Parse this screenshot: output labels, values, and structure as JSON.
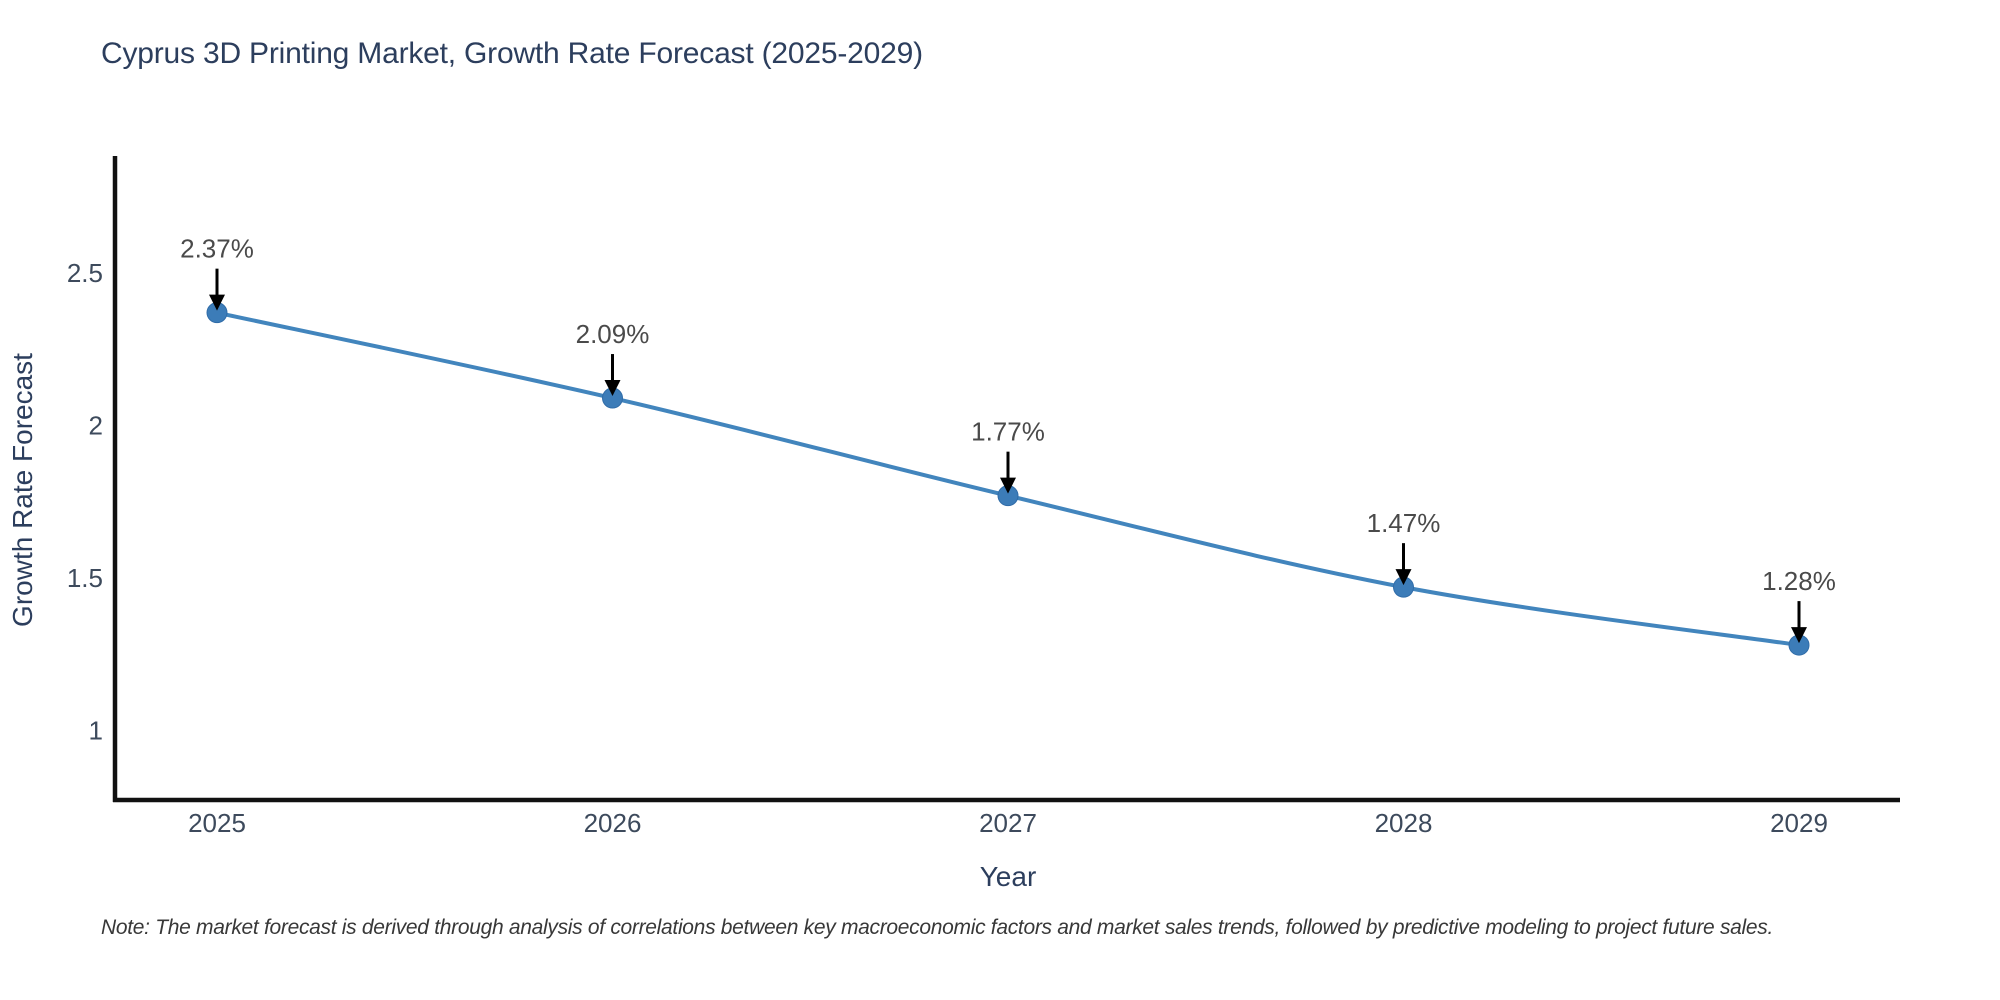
{
  "title": "Cyprus 3D Printing Market, Growth Rate Forecast (2025-2029)",
  "note": "Note: The market forecast is derived through analysis of correlations between key macroeconomic factors and market sales trends, followed by predictive modeling to project future sales.",
  "chart_data": {
    "type": "line",
    "title": "Cyprus 3D Printing Market, Growth Rate Forecast (2025-2029)",
    "x": [
      2025,
      2026,
      2027,
      2028,
      2029
    ],
    "values": [
      2.37,
      2.09,
      1.77,
      1.47,
      1.28
    ],
    "point_labels": [
      "2.37%",
      "2.09%",
      "1.77%",
      "1.47%",
      "1.28%"
    ],
    "xlabel": "Year",
    "ylabel": "Growth Rate Forecast",
    "yticks": [
      2.5,
      2,
      1.5,
      1
    ],
    "ylim": [
      0.77,
      2.88
    ],
    "grid": false,
    "legend": "none",
    "marker_style": "circle",
    "annotation_style": "down-arrow",
    "line_color": "#4285bd",
    "marker_color": "#3c7cb8",
    "marker_edge_color": "#306ca8",
    "arrow_color": "#000000",
    "axis_color": "#111111"
  }
}
